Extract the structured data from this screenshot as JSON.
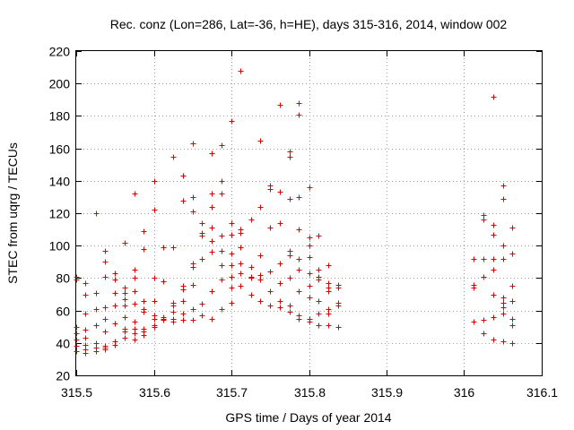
{
  "chart_data": {
    "type": "scatter",
    "title": "Rec. conz (Lon=286, Lat=-36, h=HE), days 315-316, 2014, window 002",
    "xlabel": "GPS time / Days of year 2014",
    "ylabel": "STEC from uqrg / TECUs",
    "xlim": [
      315.5,
      316.1
    ],
    "ylim": [
      20,
      220
    ],
    "grid": true,
    "marker": "+",
    "color": "#dd0000",
    "x_ticks": [
      "315.5",
      "315.6",
      "315.7",
      "315.8",
      "315.9",
      "316",
      "316.1"
    ],
    "y_ticks": [
      "20",
      "40",
      "60",
      "80",
      "100",
      "120",
      "140",
      "160",
      "180",
      "200",
      "220"
    ],
    "series": [
      {
        "name": "STEC",
        "points": [
          [
            315.5,
            81
          ],
          [
            315.5,
            79
          ],
          [
            315.5,
            50
          ],
          [
            315.5,
            46
          ],
          [
            315.5,
            42
          ],
          [
            315.5,
            38
          ],
          [
            315.5,
            35
          ],
          [
            315.512,
            77
          ],
          [
            315.512,
            70
          ],
          [
            315.512,
            58
          ],
          [
            315.512,
            48
          ],
          [
            315.512,
            43
          ],
          [
            315.512,
            39
          ],
          [
            315.512,
            36
          ],
          [
            315.512,
            34
          ],
          [
            315.525,
            120
          ],
          [
            315.525,
            71
          ],
          [
            315.525,
            61
          ],
          [
            315.525,
            51
          ],
          [
            315.525,
            40
          ],
          [
            315.525,
            37
          ],
          [
            315.525,
            35
          ],
          [
            315.537,
            97
          ],
          [
            315.537,
            90
          ],
          [
            315.537,
            81
          ],
          [
            315.537,
            62
          ],
          [
            315.537,
            55
          ],
          [
            315.537,
            47
          ],
          [
            315.537,
            38
          ],
          [
            315.537,
            37
          ],
          [
            315.537,
            36
          ],
          [
            315.55,
            83
          ],
          [
            315.55,
            79
          ],
          [
            315.55,
            71
          ],
          [
            315.55,
            63
          ],
          [
            315.55,
            52
          ],
          [
            315.55,
            41
          ],
          [
            315.55,
            39
          ],
          [
            315.562,
            102
          ],
          [
            315.562,
            74
          ],
          [
            315.562,
            71
          ],
          [
            315.562,
            67
          ],
          [
            315.562,
            63
          ],
          [
            315.562,
            56
          ],
          [
            315.562,
            49
          ],
          [
            315.562,
            47
          ],
          [
            315.562,
            43
          ],
          [
            315.575,
            132
          ],
          [
            315.575,
            85
          ],
          [
            315.575,
            80
          ],
          [
            315.575,
            72
          ],
          [
            315.575,
            64
          ],
          [
            315.575,
            53
          ],
          [
            315.575,
            49
          ],
          [
            315.575,
            46
          ],
          [
            315.575,
            42
          ],
          [
            315.587,
            109
          ],
          [
            315.587,
            98
          ],
          [
            315.587,
            66
          ],
          [
            315.587,
            61
          ],
          [
            315.587,
            59
          ],
          [
            315.587,
            49
          ],
          [
            315.587,
            47
          ],
          [
            315.587,
            45
          ],
          [
            315.6,
            140
          ],
          [
            315.6,
            122
          ],
          [
            315.6,
            80
          ],
          [
            315.6,
            66
          ],
          [
            315.6,
            57
          ],
          [
            315.6,
            55
          ],
          [
            315.6,
            51
          ],
          [
            315.6,
            50
          ],
          [
            315.612,
            99
          ],
          [
            315.612,
            78
          ],
          [
            315.612,
            56
          ],
          [
            315.612,
            55
          ],
          [
            315.612,
            54
          ],
          [
            315.625,
            155
          ],
          [
            315.625,
            99
          ],
          [
            315.625,
            65
          ],
          [
            315.625,
            63
          ],
          [
            315.625,
            59
          ],
          [
            315.625,
            55
          ],
          [
            315.625,
            53
          ],
          [
            315.637,
            143
          ],
          [
            315.637,
            128
          ],
          [
            315.637,
            75
          ],
          [
            315.637,
            73
          ],
          [
            315.637,
            66
          ],
          [
            315.637,
            58
          ],
          [
            315.637,
            54
          ],
          [
            315.65,
            163
          ],
          [
            315.65,
            130
          ],
          [
            315.65,
            121
          ],
          [
            315.65,
            89
          ],
          [
            315.65,
            87
          ],
          [
            315.65,
            76
          ],
          [
            315.65,
            61
          ],
          [
            315.65,
            54
          ],
          [
            315.662,
            114
          ],
          [
            315.662,
            108
          ],
          [
            315.662,
            106
          ],
          [
            315.662,
            92
          ],
          [
            315.662,
            64
          ],
          [
            315.662,
            57
          ],
          [
            315.675,
            157
          ],
          [
            315.675,
            132
          ],
          [
            315.675,
            124
          ],
          [
            315.675,
            111
          ],
          [
            315.675,
            103
          ],
          [
            315.675,
            96
          ],
          [
            315.675,
            72
          ],
          [
            315.675,
            55
          ],
          [
            315.687,
            162
          ],
          [
            315.687,
            140
          ],
          [
            315.687,
            132
          ],
          [
            315.687,
            106
          ],
          [
            315.687,
            97
          ],
          [
            315.687,
            88
          ],
          [
            315.687,
            79
          ],
          [
            315.687,
            61
          ],
          [
            315.7,
            177
          ],
          [
            315.7,
            114
          ],
          [
            315.7,
            107
          ],
          [
            315.7,
            95
          ],
          [
            315.7,
            88
          ],
          [
            315.7,
            81
          ],
          [
            315.7,
            74
          ],
          [
            315.7,
            65
          ],
          [
            315.712,
            208
          ],
          [
            315.712,
            110
          ],
          [
            315.712,
            108
          ],
          [
            315.712,
            99
          ],
          [
            315.712,
            89
          ],
          [
            315.712,
            83
          ],
          [
            315.712,
            75
          ],
          [
            315.725,
            116
          ],
          [
            315.725,
            87
          ],
          [
            315.725,
            81
          ],
          [
            315.725,
            80
          ],
          [
            315.725,
            70
          ],
          [
            315.737,
            165
          ],
          [
            315.737,
            124
          ],
          [
            315.737,
            94
          ],
          [
            315.737,
            82
          ],
          [
            315.737,
            79
          ],
          [
            315.737,
            66
          ],
          [
            315.75,
            137
          ],
          [
            315.75,
            135
          ],
          [
            315.75,
            111
          ],
          [
            315.75,
            84
          ],
          [
            315.75,
            72
          ],
          [
            315.75,
            63
          ],
          [
            315.762,
            187
          ],
          [
            315.762,
            133
          ],
          [
            315.762,
            114
          ],
          [
            315.762,
            89
          ],
          [
            315.762,
            77
          ],
          [
            315.762,
            66
          ],
          [
            315.762,
            62
          ],
          [
            315.775,
            158
          ],
          [
            315.775,
            155
          ],
          [
            315.775,
            129
          ],
          [
            315.775,
            97
          ],
          [
            315.775,
            94
          ],
          [
            315.775,
            80
          ],
          [
            315.775,
            63
          ],
          [
            315.775,
            59
          ],
          [
            315.787,
            188
          ],
          [
            315.787,
            181
          ],
          [
            315.787,
            130
          ],
          [
            315.787,
            110
          ],
          [
            315.787,
            92
          ],
          [
            315.787,
            85
          ],
          [
            315.787,
            72
          ],
          [
            315.787,
            57
          ],
          [
            315.787,
            55
          ],
          [
            315.8,
            136
          ],
          [
            315.8,
            105
          ],
          [
            315.8,
            100
          ],
          [
            315.8,
            93
          ],
          [
            315.8,
            83
          ],
          [
            315.8,
            75
          ],
          [
            315.8,
            68
          ],
          [
            315.8,
            55
          ],
          [
            315.8,
            53
          ],
          [
            315.812,
            106
          ],
          [
            315.812,
            85
          ],
          [
            315.812,
            81
          ],
          [
            315.812,
            79
          ],
          [
            315.812,
            66
          ],
          [
            315.812,
            58
          ],
          [
            315.812,
            51
          ],
          [
            315.825,
            88
          ],
          [
            315.825,
            77
          ],
          [
            315.825,
            74
          ],
          [
            315.825,
            72
          ],
          [
            315.825,
            61
          ],
          [
            315.825,
            58
          ],
          [
            315.825,
            51
          ],
          [
            315.837,
            76
          ],
          [
            315.837,
            74
          ],
          [
            315.837,
            65
          ],
          [
            315.837,
            63
          ],
          [
            315.837,
            50
          ],
          [
            316.012,
            92
          ],
          [
            316.012,
            76
          ],
          [
            316.012,
            74
          ],
          [
            316.012,
            53
          ],
          [
            316.025,
            119
          ],
          [
            316.025,
            116
          ],
          [
            316.025,
            92
          ],
          [
            316.025,
            81
          ],
          [
            316.025,
            54
          ],
          [
            316.025,
            46
          ],
          [
            316.037,
            192
          ],
          [
            316.037,
            113
          ],
          [
            316.037,
            107
          ],
          [
            316.037,
            92
          ],
          [
            316.037,
            85
          ],
          [
            316.037,
            70
          ],
          [
            316.037,
            56
          ],
          [
            316.037,
            42
          ],
          [
            316.05,
            137
          ],
          [
            316.05,
            129
          ],
          [
            316.05,
            100
          ],
          [
            316.05,
            92
          ],
          [
            316.05,
            68
          ],
          [
            316.05,
            65
          ],
          [
            316.05,
            62
          ],
          [
            316.05,
            58
          ],
          [
            316.05,
            41
          ],
          [
            316.062,
            111
          ],
          [
            316.062,
            95
          ],
          [
            316.062,
            75
          ],
          [
            316.062,
            66
          ],
          [
            316.062,
            55
          ],
          [
            316.062,
            51
          ],
          [
            316.062,
            40
          ]
        ]
      }
    ]
  }
}
